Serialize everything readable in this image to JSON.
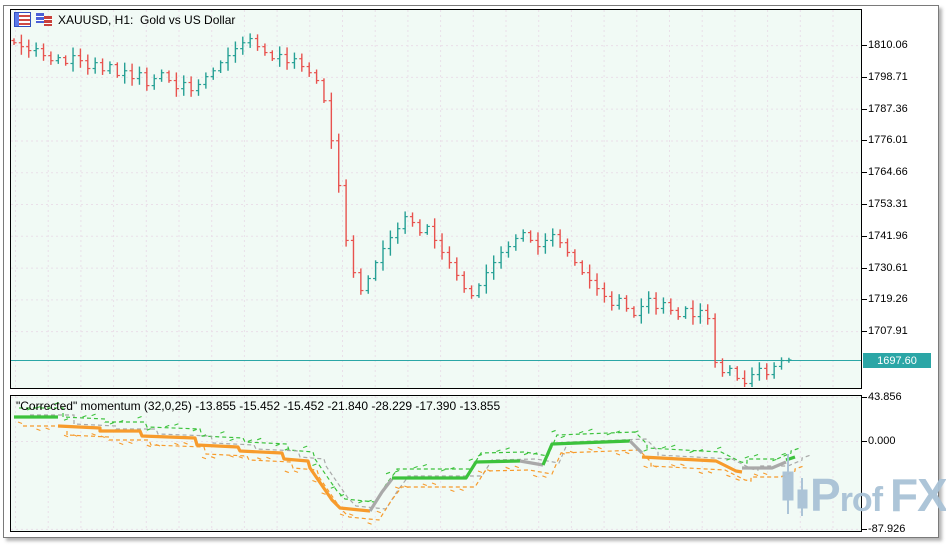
{
  "window": {
    "title": "XAUUSD, H1:  Gold vs US Dollar",
    "icon_names": [
      "quotes-table-icon",
      "bar-chart-icon"
    ]
  },
  "colors": {
    "bull": "#26a095",
    "bear": "#e8524e",
    "price_line": "#2ba6a6",
    "tag_bg": "#2ba6a6",
    "tag_text": "#ffffff",
    "ind_green": "#3cc23c",
    "ind_orange": "#f79b2c",
    "ind_gray": "#a9a9a9",
    "pane_bg": "#f1faf5",
    "grid": "#eadfe9",
    "pane_border": "#000000",
    "watermark": "#a9c2d6"
  },
  "price_axis": {
    "labels": [
      "1810.06",
      "1798.71",
      "1787.36",
      "1776.01",
      "1764.66",
      "1753.31",
      "1741.96",
      "1730.61",
      "1719.26",
      "1707.91"
    ],
    "current": "1697.60"
  },
  "indicator_axis": {
    "labels": [
      "43.856",
      "0.000",
      "-87.926"
    ]
  },
  "watermark": {
    "p": "P",
    "rof": "rof",
    "fx": "FX"
  },
  "chart_data": [
    {
      "type": "ohlc-bar",
      "symbol": "XAUUSD",
      "timeframe": "H1",
      "title": "XAUUSD, H1:  Gold vs US Dollar",
      "current_price": 1697.6,
      "y_ticks": [
        1810.06,
        1798.71,
        1787.36,
        1776.01,
        1764.66,
        1753.31,
        1741.96,
        1730.61,
        1719.26,
        1707.91
      ],
      "closes": [
        1810.9,
        1809.5,
        1808.1,
        1808.8,
        1806.3,
        1804.5,
        1805.6,
        1803.5,
        1806.3,
        1804.5,
        1801.7,
        1803.8,
        1800.9,
        1803.1,
        1799.2,
        1800.9,
        1798.1,
        1800.2,
        1795.6,
        1798.1,
        1800.2,
        1797.4,
        1794.5,
        1796.7,
        1793.8,
        1796.0,
        1798.8,
        1800.9,
        1803.8,
        1806.3,
        1808.8,
        1810.9,
        1812.4,
        1809.5,
        1807.4,
        1805.2,
        1806.7,
        1803.8,
        1805.2,
        1802.4,
        1800.2,
        1797.4,
        1790.2,
        1775.9,
        1759.9,
        1740.3,
        1728.8,
        1722.4,
        1726.7,
        1732.4,
        1737.4,
        1741.3,
        1744.5,
        1748.8,
        1746.7,
        1743.1,
        1745.3,
        1740.3,
        1736.0,
        1732.4,
        1727.8,
        1723.1,
        1720.6,
        1724.2,
        1728.8,
        1732.4,
        1736.0,
        1738.1,
        1741.0,
        1743.1,
        1740.3,
        1738.1,
        1740.3,
        1742.4,
        1739.5,
        1736.0,
        1732.4,
        1728.8,
        1726.0,
        1723.1,
        1720.3,
        1717.1,
        1719.6,
        1716.0,
        1713.5,
        1716.7,
        1719.6,
        1716.0,
        1718.1,
        1715.3,
        1713.1,
        1716.0,
        1713.1,
        1715.3,
        1712.4,
        1696.7,
        1693.1,
        1694.6,
        1691.0,
        1689.2,
        1692.4,
        1694.6,
        1692.4,
        1695.3,
        1697.4,
        1697.6
      ]
    },
    {
      "type": "step-line",
      "title": "\"Corrected\" momentum (32,0,25) -13.855 -15.452 -15.452 -21.840 -28.229 -17.390 -13.855",
      "current_values": [
        -13.855,
        -15.452,
        -15.452,
        -21.84,
        -28.229,
        -17.39,
        -13.855
      ],
      "y_ticks": [
        43.856,
        0.0,
        -87.926
      ],
      "segments": [
        {
          "color": "green",
          "points": [
            [
              14,
              24
            ],
            [
              58,
              24
            ]
          ]
        },
        {
          "color": "orange",
          "points": [
            [
              58,
              15
            ],
            [
              100,
              13
            ],
            [
              100,
              10
            ],
            [
              140,
              10
            ],
            [
              142,
              5
            ],
            [
              195,
              3
            ],
            [
              197,
              -4
            ],
            [
              238,
              -6
            ],
            [
              240,
              -10
            ],
            [
              282,
              -12
            ],
            [
              284,
              -18
            ],
            [
              308,
              -20
            ],
            [
              310,
              -27
            ],
            [
              332,
              -59
            ],
            [
              340,
              -67
            ],
            [
              370,
              -70
            ]
          ]
        },
        {
          "color": "gray",
          "points": [
            [
              370,
              -70
            ],
            [
              382,
              -51
            ],
            [
              392,
              -38
            ]
          ]
        },
        {
          "color": "green",
          "points": [
            [
              392,
              -37
            ],
            [
              466,
              -37
            ],
            [
              476,
              -21
            ],
            [
              520,
              -20
            ]
          ]
        },
        {
          "color": "gray",
          "points": [
            [
              520,
              -20
            ],
            [
              543,
              -24
            ]
          ]
        },
        {
          "color": "green",
          "points": [
            [
              543,
              -24
            ],
            [
              552,
              -3
            ],
            [
              630,
              0
            ]
          ]
        },
        {
          "color": "gray",
          "points": [
            [
              630,
              0
            ],
            [
              642,
              -12
            ]
          ]
        },
        {
          "color": "orange",
          "points": [
            [
              642,
              -16
            ],
            [
              716,
              -20
            ],
            [
              736,
              -30
            ],
            [
              742,
              -31
            ]
          ]
        },
        {
          "color": "gray",
          "points": [
            [
              742,
              -27
            ],
            [
              772,
              -27
            ],
            [
              786,
              -21
            ]
          ]
        },
        {
          "color": "green",
          "points": [
            [
              786,
              -19
            ],
            [
              795,
              -16
            ]
          ]
        }
      ]
    }
  ]
}
